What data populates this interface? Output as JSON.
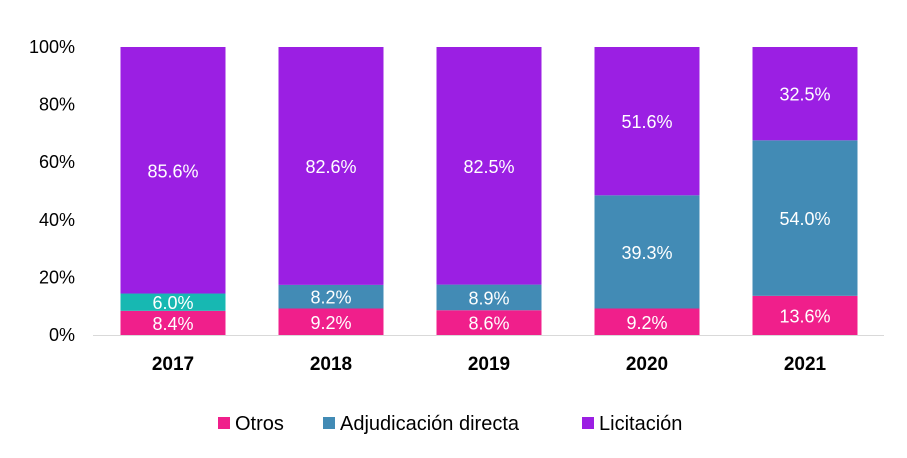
{
  "chart_data": {
    "type": "bar",
    "stacked": true,
    "categories": [
      "2017",
      "2018",
      "2019",
      "2020",
      "2021"
    ],
    "series": [
      {
        "name": "Otros",
        "color": "#f01f8b",
        "values": [
          8.4,
          9.2,
          8.6,
          9.2,
          13.6
        ],
        "labels": [
          "8.4%",
          "9.2%",
          "8.6%",
          "9.2%",
          "13.6%"
        ]
      },
      {
        "name": "Adjudicación directa",
        "color": "#428bb5",
        "values": [
          6.0,
          8.2,
          8.9,
          39.3,
          54.0
        ],
        "labels": [
          "6.0%",
          "8.2%",
          "8.9%",
          "39.3%",
          "54.0%"
        ],
        "label_colors": [
          "#17b8b2",
          "#428bb5",
          "#428bb5",
          "#428bb5",
          "#428bb5"
        ]
      },
      {
        "name": "Licitación",
        "color": "#9b1fe3",
        "values": [
          85.6,
          82.6,
          82.5,
          51.6,
          32.5
        ],
        "labels": [
          "85.6%",
          "82.6%",
          "82.5%",
          "51.6%",
          "32.5%"
        ]
      }
    ],
    "ylim": [
      0,
      100
    ],
    "yticks": [
      "0%",
      "20%",
      "40%",
      "60%",
      "80%",
      "100%"
    ],
    "legend_position": "bottom",
    "grid": false
  }
}
